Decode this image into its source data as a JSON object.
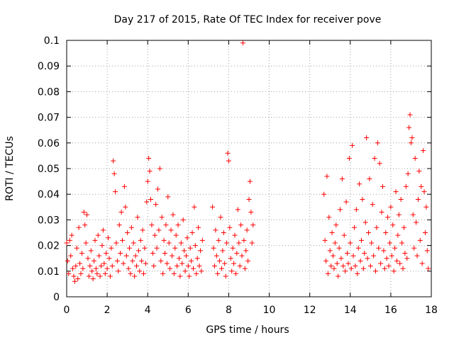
{
  "chart_data": {
    "type": "scatter",
    "title": "Day 217 of 2015, Rate Of TEC Index for receiver pove",
    "xlabel": "GPS time / hours",
    "ylabel": "ROTI / TECUs",
    "xlim": [
      0,
      18
    ],
    "ylim": [
      0,
      0.1
    ],
    "grid": true,
    "x_ticks": [
      0,
      2,
      4,
      6,
      8,
      10,
      12,
      14,
      16,
      18
    ],
    "y_ticks": [
      0,
      0.01,
      0.02,
      0.03,
      0.04,
      0.05,
      0.06,
      0.07,
      0.08,
      0.09,
      0.1
    ],
    "y_tick_labels": [
      "0",
      "0.01",
      "0.02",
      "0.03",
      "0.04",
      "0.05",
      "0.06",
      "0.07",
      "0.08",
      "0.09",
      "0.1"
    ],
    "marker": "+",
    "series_color": "#ff0000",
    "series": [
      {
        "name": "ROTI",
        "points": [
          [
            0.0,
            0.021
          ],
          [
            0.05,
            0.014
          ],
          [
            0.1,
            0.009
          ],
          [
            0.15,
            0.022
          ],
          [
            0.2,
            0.016
          ],
          [
            0.25,
            0.024
          ],
          [
            0.3,
            0.011
          ],
          [
            0.35,
            0.008
          ],
          [
            0.4,
            0.006
          ],
          [
            0.45,
            0.012
          ],
          [
            0.5,
            0.019
          ],
          [
            0.55,
            0.007
          ],
          [
            0.6,
            0.027
          ],
          [
            0.65,
            0.013
          ],
          [
            0.7,
            0.009
          ],
          [
            0.75,
            0.017
          ],
          [
            0.8,
            0.011
          ],
          [
            0.85,
            0.033
          ],
          [
            0.9,
            0.028
          ],
          [
            0.95,
            0.021
          ],
          [
            1.0,
            0.032
          ],
          [
            1.05,
            0.015
          ],
          [
            1.1,
            0.008
          ],
          [
            1.15,
            0.012
          ],
          [
            1.2,
            0.018
          ],
          [
            1.25,
            0.01
          ],
          [
            1.3,
            0.007
          ],
          [
            1.35,
            0.014
          ],
          [
            1.4,
            0.022
          ],
          [
            1.45,
            0.011
          ],
          [
            1.5,
            0.009
          ],
          [
            1.55,
            0.024
          ],
          [
            1.6,
            0.016
          ],
          [
            1.65,
            0.008
          ],
          [
            1.7,
            0.012
          ],
          [
            1.75,
            0.02
          ],
          [
            1.8,
            0.026
          ],
          [
            1.85,
            0.013
          ],
          [
            1.9,
            0.009
          ],
          [
            1.95,
            0.017
          ],
          [
            2.0,
            0.011
          ],
          [
            2.05,
            0.023
          ],
          [
            2.1,
            0.015
          ],
          [
            2.15,
            0.008
          ],
          [
            2.2,
            0.019
          ],
          [
            2.25,
            0.012
          ],
          [
            2.3,
            0.053
          ],
          [
            2.35,
            0.048
          ],
          [
            2.4,
            0.041
          ],
          [
            2.45,
            0.021
          ],
          [
            2.5,
            0.014
          ],
          [
            2.55,
            0.01
          ],
          [
            2.6,
            0.028
          ],
          [
            2.65,
            0.017
          ],
          [
            2.7,
            0.033
          ],
          [
            2.75,
            0.022
          ],
          [
            2.8,
            0.013
          ],
          [
            2.85,
            0.043
          ],
          [
            2.9,
            0.035
          ],
          [
            2.95,
            0.016
          ],
          [
            3.0,
            0.025
          ],
          [
            3.05,
            0.011
          ],
          [
            3.1,
            0.019
          ],
          [
            3.15,
            0.009
          ],
          [
            3.2,
            0.027
          ],
          [
            3.25,
            0.014
          ],
          [
            3.3,
            0.021
          ],
          [
            3.35,
            0.008
          ],
          [
            3.4,
            0.016
          ],
          [
            3.45,
            0.012
          ],
          [
            3.5,
            0.031
          ],
          [
            3.55,
            0.018
          ],
          [
            3.6,
            0.01
          ],
          [
            3.65,
            0.022
          ],
          [
            3.7,
            0.014
          ],
          [
            3.75,
            0.026
          ],
          [
            3.8,
            0.009
          ],
          [
            3.85,
            0.019
          ],
          [
            3.9,
            0.013
          ],
          [
            3.95,
            0.037
          ],
          [
            4.0,
            0.045
          ],
          [
            4.05,
            0.054
          ],
          [
            4.1,
            0.049
          ],
          [
            4.15,
            0.038
          ],
          [
            4.2,
            0.028
          ],
          [
            4.25,
            0.017
          ],
          [
            4.3,
            0.012
          ],
          [
            4.35,
            0.024
          ],
          [
            4.4,
            0.036
          ],
          [
            4.45,
            0.019
          ],
          [
            4.5,
            0.042
          ],
          [
            4.55,
            0.026
          ],
          [
            4.6,
            0.05
          ],
          [
            4.65,
            0.014
          ],
          [
            4.7,
            0.031
          ],
          [
            4.75,
            0.009
          ],
          [
            4.8,
            0.022
          ],
          [
            4.85,
            0.017
          ],
          [
            4.9,
            0.028
          ],
          [
            4.95,
            0.013
          ],
          [
            5.0,
            0.039
          ],
          [
            5.05,
            0.021
          ],
          [
            5.1,
            0.011
          ],
          [
            5.15,
            0.026
          ],
          [
            5.2,
            0.016
          ],
          [
            5.25,
            0.032
          ],
          [
            5.3,
            0.009
          ],
          [
            5.35,
            0.019
          ],
          [
            5.4,
            0.024
          ],
          [
            5.45,
            0.012
          ],
          [
            5.5,
            0.028
          ],
          [
            5.55,
            0.015
          ],
          [
            5.6,
            0.008
          ],
          [
            5.65,
            0.021
          ],
          [
            5.7,
            0.013
          ],
          [
            5.75,
            0.03
          ],
          [
            5.8,
            0.018
          ],
          [
            5.85,
            0.01
          ],
          [
            5.9,
            0.016
          ],
          [
            5.95,
            0.023
          ],
          [
            6.0,
            0.012
          ],
          [
            6.05,
            0.008
          ],
          [
            6.1,
            0.019
          ],
          [
            6.15,
            0.014
          ],
          [
            6.2,
            0.025
          ],
          [
            6.25,
            0.011
          ],
          [
            6.3,
            0.035
          ],
          [
            6.35,
            0.02
          ],
          [
            6.4,
            0.009
          ],
          [
            6.45,
            0.015
          ],
          [
            6.5,
            0.027
          ],
          [
            6.55,
            0.012
          ],
          [
            6.6,
            0.018
          ],
          [
            6.65,
            0.01
          ],
          [
            6.7,
            0.022
          ],
          [
            7.2,
            0.035
          ],
          [
            7.25,
            0.019
          ],
          [
            7.3,
            0.012
          ],
          [
            7.35,
            0.026
          ],
          [
            7.4,
            0.016
          ],
          [
            7.45,
            0.009
          ],
          [
            7.5,
            0.022
          ],
          [
            7.55,
            0.014
          ],
          [
            7.6,
            0.031
          ],
          [
            7.65,
            0.011
          ],
          [
            7.7,
            0.018
          ],
          [
            7.75,
            0.025
          ],
          [
            7.8,
            0.013
          ],
          [
            7.85,
            0.008
          ],
          [
            7.9,
            0.021
          ],
          [
            7.95,
            0.056
          ],
          [
            8.0,
            0.053
          ],
          [
            8.05,
            0.027
          ],
          [
            8.1,
            0.015
          ],
          [
            8.15,
            0.01
          ],
          [
            8.2,
            0.019
          ],
          [
            8.25,
            0.013
          ],
          [
            8.3,
            0.024
          ],
          [
            8.35,
            0.009
          ],
          [
            8.4,
            0.017
          ],
          [
            8.45,
            0.034
          ],
          [
            8.5,
            0.021
          ],
          [
            8.55,
            0.012
          ],
          [
            8.6,
            0.028
          ],
          [
            8.65,
            0.016
          ],
          [
            8.7,
            0.099
          ],
          [
            8.75,
            0.022
          ],
          [
            8.8,
            0.011
          ],
          [
            8.85,
            0.018
          ],
          [
            8.9,
            0.026
          ],
          [
            8.95,
            0.014
          ],
          [
            9.0,
            0.038
          ],
          [
            9.05,
            0.045
          ],
          [
            9.1,
            0.033
          ],
          [
            9.15,
            0.021
          ],
          [
            9.2,
            0.028
          ],
          [
            12.7,
            0.04
          ],
          [
            12.75,
            0.022
          ],
          [
            12.8,
            0.014
          ],
          [
            12.85,
            0.047
          ],
          [
            12.9,
            0.009
          ],
          [
            12.95,
            0.031
          ],
          [
            13.0,
            0.018
          ],
          [
            13.05,
            0.012
          ],
          [
            13.1,
            0.025
          ],
          [
            13.15,
            0.016
          ],
          [
            13.2,
            0.011
          ],
          [
            13.25,
            0.021
          ],
          [
            13.3,
            0.028
          ],
          [
            13.35,
            0.013
          ],
          [
            13.4,
            0.008
          ],
          [
            13.45,
            0.019
          ],
          [
            13.5,
            0.034
          ],
          [
            13.55,
            0.015
          ],
          [
            13.6,
            0.046
          ],
          [
            13.65,
            0.012
          ],
          [
            13.7,
            0.024
          ],
          [
            13.75,
            0.01
          ],
          [
            13.8,
            0.037
          ],
          [
            13.85,
            0.017
          ],
          [
            13.9,
            0.013
          ],
          [
            13.95,
            0.054
          ],
          [
            14.0,
            0.021
          ],
          [
            14.05,
            0.011
          ],
          [
            14.1,
            0.059
          ],
          [
            14.15,
            0.016
          ],
          [
            14.2,
            0.027
          ],
          [
            14.25,
            0.012
          ],
          [
            14.3,
            0.034
          ],
          [
            14.35,
            0.009
          ],
          [
            14.4,
            0.019
          ],
          [
            14.45,
            0.044
          ],
          [
            14.5,
            0.014
          ],
          [
            14.55,
            0.022
          ],
          [
            14.6,
            0.038
          ],
          [
            14.65,
            0.011
          ],
          [
            14.7,
            0.017
          ],
          [
            14.75,
            0.029
          ],
          [
            14.8,
            0.062
          ],
          [
            14.85,
            0.015
          ],
          [
            14.9,
            0.025
          ],
          [
            14.95,
            0.046
          ],
          [
            15.0,
            0.012
          ],
          [
            15.05,
            0.021
          ],
          [
            15.1,
            0.036
          ],
          [
            15.15,
            0.016
          ],
          [
            15.2,
            0.054
          ],
          [
            15.25,
            0.01
          ],
          [
            15.3,
            0.027
          ],
          [
            15.35,
            0.06
          ],
          [
            15.4,
            0.019
          ],
          [
            15.45,
            0.052
          ],
          [
            15.5,
            0.013
          ],
          [
            15.55,
            0.033
          ],
          [
            15.6,
            0.043
          ],
          [
            15.65,
            0.018
          ],
          [
            15.7,
            0.011
          ],
          [
            15.75,
            0.025
          ],
          [
            15.8,
            0.015
          ],
          [
            15.85,
            0.031
          ],
          [
            15.9,
            0.012
          ],
          [
            15.95,
            0.021
          ],
          [
            16.0,
            0.035
          ],
          [
            16.05,
            0.016
          ],
          [
            16.1,
            0.028
          ],
          [
            16.15,
            0.01
          ],
          [
            16.2,
            0.019
          ],
          [
            16.25,
            0.041
          ],
          [
            16.3,
            0.014
          ],
          [
            16.35,
            0.024
          ],
          [
            16.4,
            0.032
          ],
          [
            16.45,
            0.013
          ],
          [
            16.5,
            0.038
          ],
          [
            16.55,
            0.021
          ],
          [
            16.6,
            0.011
          ],
          [
            16.65,
            0.027
          ],
          [
            16.7,
            0.017
          ],
          [
            16.75,
            0.043
          ],
          [
            16.8,
            0.015
          ],
          [
            16.85,
            0.048
          ],
          [
            16.9,
            0.066
          ],
          [
            16.95,
            0.071
          ],
          [
            17.0,
            0.06
          ],
          [
            17.05,
            0.062
          ],
          [
            17.1,
            0.032
          ],
          [
            17.15,
            0.019
          ],
          [
            17.2,
            0.054
          ],
          [
            17.25,
            0.029
          ],
          [
            17.3,
            0.016
          ],
          [
            17.35,
            0.038
          ],
          [
            17.4,
            0.049
          ],
          [
            17.45,
            0.022
          ],
          [
            17.5,
            0.043
          ],
          [
            17.55,
            0.013
          ],
          [
            17.6,
            0.057
          ],
          [
            17.65,
            0.041
          ],
          [
            17.7,
            0.025
          ],
          [
            17.75,
            0.035
          ],
          [
            17.8,
            0.018
          ],
          [
            17.85,
            0.011
          ]
        ]
      }
    ]
  }
}
